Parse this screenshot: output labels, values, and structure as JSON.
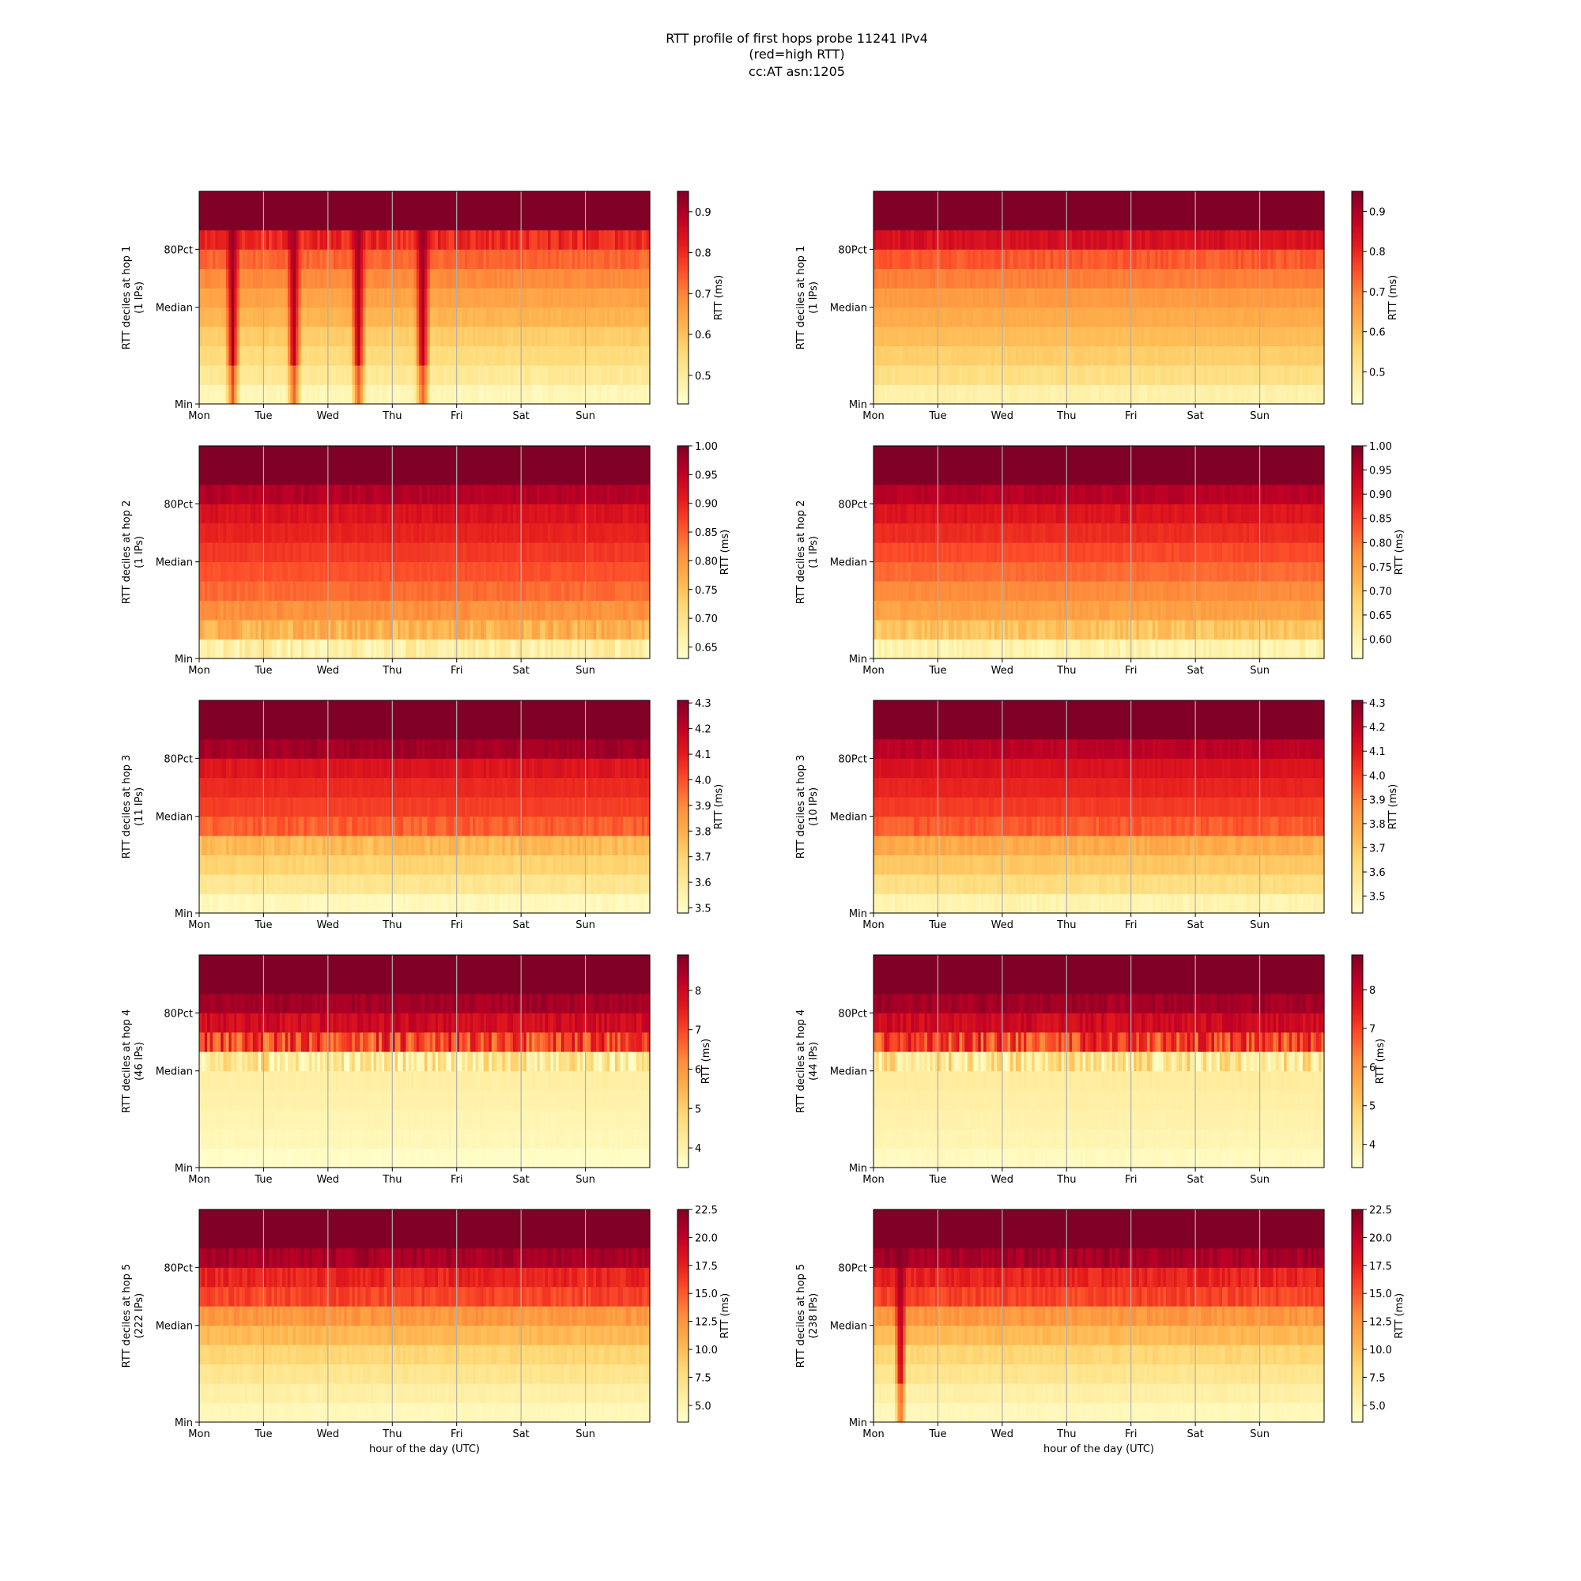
{
  "figure": {
    "title_lines": [
      "RTT profile of first hops probe 11241 IPv4",
      "(red=high RTT)",
      "cc:AT asn:1205"
    ]
  },
  "chart_data": [
    {
      "type": "heatmap",
      "hop": 1,
      "col": 0,
      "ylabel": [
        "RTT deciles at hop 1",
        "(1 IPs)"
      ],
      "xlabel": "",
      "xticks": [
        "Mon",
        "Tue",
        "Wed",
        "Thu",
        "Fri",
        "Sat",
        "Sun"
      ],
      "yticks": [
        "Min",
        "Median",
        "80Pct"
      ],
      "colorbar_label": "RTT (ms)",
      "cbar_ticks": [
        "0.5",
        "0.6",
        "0.7",
        "0.8",
        "0.9"
      ],
      "cbar_range": [
        0.43,
        0.95
      ],
      "deciles": [
        0.46,
        0.51,
        0.55,
        0.58,
        0.62,
        0.65,
        0.69,
        0.73,
        0.8,
        0.95
      ],
      "dips": [
        [
          0.5,
          0.12
        ],
        [
          1.45,
          0.12
        ],
        [
          2.45,
          0.12
        ],
        [
          3.45,
          0.13
        ]
      ],
      "noise": 0.5,
      "grid": true
    },
    {
      "type": "heatmap",
      "hop": 1,
      "col": 1,
      "ylabel": [
        "RTT deciles at hop 1",
        "(1 IPs)"
      ],
      "xlabel": "",
      "xticks": [
        "Mon",
        "Tue",
        "Wed",
        "Thu",
        "Fri",
        "Sat",
        "Sun"
      ],
      "yticks": [
        "Min",
        "Median",
        "80Pct"
      ],
      "colorbar_label": "RTT (ms)",
      "cbar_ticks": [
        "0.5",
        "0.6",
        "0.7",
        "0.8",
        "0.9"
      ],
      "cbar_range": [
        0.42,
        0.95
      ],
      "deciles": [
        0.47,
        0.53,
        0.57,
        0.6,
        0.63,
        0.66,
        0.7,
        0.74,
        0.84,
        0.95
      ],
      "dips": [],
      "noise": 0.4,
      "grid": true
    },
    {
      "type": "heatmap",
      "hop": 2,
      "col": 0,
      "ylabel": [
        "RTT deciles at hop 2",
        "(1 IPs)"
      ],
      "xlabel": "",
      "xticks": [
        "Mon",
        "Tue",
        "Wed",
        "Thu",
        "Fri",
        "Sat",
        "Sun"
      ],
      "yticks": [
        "Min",
        "Median",
        "80Pct"
      ],
      "colorbar_label": "RTT (ms)",
      "cbar_ticks": [
        "0.65",
        "0.70",
        "0.75",
        "0.80",
        "0.85",
        "0.90",
        "0.95",
        "1.00"
      ],
      "cbar_range": [
        0.63,
        1.0
      ],
      "deciles": [
        0.67,
        0.77,
        0.81,
        0.84,
        0.86,
        0.88,
        0.9,
        0.92,
        0.96,
        1.0
      ],
      "dips": [],
      "noise": 0.6,
      "grid": true
    },
    {
      "type": "heatmap",
      "hop": 2,
      "col": 1,
      "ylabel": [
        "RTT deciles at hop 2",
        "(1 IPs)"
      ],
      "xlabel": "",
      "xticks": [
        "Mon",
        "Tue",
        "Wed",
        "Thu",
        "Fri",
        "Sat",
        "Sun"
      ],
      "yticks": [
        "Min",
        "Median",
        "80Pct"
      ],
      "colorbar_label": "RTT (ms)",
      "cbar_ticks": [
        "0.60",
        "0.65",
        "0.70",
        "0.75",
        "0.80",
        "0.85",
        "0.90",
        "0.95",
        "1.00"
      ],
      "cbar_range": [
        0.56,
        1.0
      ],
      "deciles": [
        0.6,
        0.7,
        0.75,
        0.78,
        0.81,
        0.84,
        0.87,
        0.9,
        0.95,
        1.0
      ],
      "dips": [],
      "noise": 0.5,
      "grid": true
    },
    {
      "type": "heatmap",
      "hop": 3,
      "col": 0,
      "ylabel": [
        "RTT deciles at hop 3",
        "(11 IPs)"
      ],
      "xlabel": "",
      "xticks": [
        "Mon",
        "Tue",
        "Wed",
        "Thu",
        "Fri",
        "Sat",
        "Sun"
      ],
      "yticks": [
        "Min",
        "Median",
        "80Pct"
      ],
      "colorbar_label": "RTT (ms)",
      "cbar_ticks": [
        "3.5",
        "3.6",
        "3.7",
        "3.8",
        "3.9",
        "4.0",
        "4.1",
        "4.2",
        "4.3"
      ],
      "cbar_range": [
        3.48,
        4.31
      ],
      "deciles": [
        3.52,
        3.62,
        3.7,
        3.77,
        3.97,
        4.03,
        4.07,
        4.12,
        4.25,
        4.31
      ],
      "dips": [],
      "noise": 0.4,
      "grid": true
    },
    {
      "type": "heatmap",
      "hop": 3,
      "col": 1,
      "ylabel": [
        "RTT deciles at hop 3",
        "(10 IPs)"
      ],
      "xlabel": "",
      "xticks": [
        "Mon",
        "Tue",
        "Wed",
        "Thu",
        "Fri",
        "Sat",
        "Sun"
      ],
      "yticks": [
        "Min",
        "Median",
        "80Pct"
      ],
      "colorbar_label": "RTT (ms)",
      "cbar_ticks": [
        "3.5",
        "3.6",
        "3.7",
        "3.8",
        "3.9",
        "4.0",
        "4.1",
        "4.2",
        "4.3"
      ],
      "cbar_range": [
        3.43,
        4.31
      ],
      "deciles": [
        3.5,
        3.62,
        3.7,
        3.78,
        3.96,
        4.02,
        4.07,
        4.12,
        4.2,
        4.31
      ],
      "dips": [],
      "noise": 0.4,
      "grid": true
    },
    {
      "type": "heatmap",
      "hop": 4,
      "col": 0,
      "ylabel": [
        "RTT deciles at hop 4",
        "(46 IPs)"
      ],
      "xlabel": "",
      "xticks": [
        "Mon",
        "Tue",
        "Wed",
        "Thu",
        "Fri",
        "Sat",
        "Sun"
      ],
      "yticks": [
        "Min",
        "Median",
        "80Pct"
      ],
      "colorbar_label": "RTT (ms)",
      "cbar_ticks": [
        "4",
        "5",
        "6",
        "7",
        "8"
      ],
      "cbar_range": [
        3.5,
        8.9
      ],
      "deciles": [
        3.6,
        3.8,
        3.9,
        4.0,
        4.1,
        4.3,
        7.0,
        7.9,
        8.5,
        8.9
      ],
      "dips": [],
      "noise": 0.7,
      "grid": true
    },
    {
      "type": "heatmap",
      "hop": 4,
      "col": 1,
      "ylabel": [
        "RTT deciles at hop 4",
        "(44 IPs)"
      ],
      "xlabel": "",
      "xticks": [
        "Mon",
        "Tue",
        "Wed",
        "Thu",
        "Fri",
        "Sat",
        "Sun"
      ],
      "yticks": [
        "Min",
        "Median",
        "80Pct"
      ],
      "colorbar_label": "RTT (ms)",
      "cbar_ticks": [
        "4",
        "5",
        "6",
        "7",
        "8"
      ],
      "cbar_range": [
        3.4,
        8.9
      ],
      "deciles": [
        3.6,
        3.8,
        3.9,
        4.0,
        4.1,
        4.3,
        7.0,
        7.9,
        8.5,
        8.9
      ],
      "dips": [],
      "noise": 0.7,
      "grid": true
    },
    {
      "type": "heatmap",
      "hop": 5,
      "col": 0,
      "ylabel": [
        "RTT deciles at hop 5",
        "(222 IPs)"
      ],
      "xlabel": "hour of the day (UTC)",
      "xticks": [
        "Mon",
        "Tue",
        "Wed",
        "Thu",
        "Fri",
        "Sat",
        "Sun"
      ],
      "yticks": [
        "Min",
        "Median",
        "80Pct"
      ],
      "colorbar_label": "RTT (ms)",
      "cbar_ticks": [
        "5.0",
        "7.5",
        "10.0",
        "12.5",
        "15.0",
        "17.5",
        "20.0",
        "22.5"
      ],
      "cbar_range": [
        3.5,
        22.5
      ],
      "deciles": [
        4.5,
        5.5,
        6.8,
        8.3,
        10.2,
        12.3,
        15.8,
        17.3,
        21.0,
        22.5
      ],
      "dips": [],
      "noise": 0.5,
      "grid": true
    },
    {
      "type": "heatmap",
      "hop": 5,
      "col": 1,
      "ylabel": [
        "RTT deciles at hop 5",
        "(238 IPs)"
      ],
      "xlabel": "hour of the day (UTC)",
      "xticks": [
        "Mon",
        "Tue",
        "Wed",
        "Thu",
        "Fri",
        "Sat",
        "Sun"
      ],
      "yticks": [
        "Min",
        "Median",
        "80Pct"
      ],
      "colorbar_label": "RTT (ms)",
      "cbar_ticks": [
        "5.0",
        "7.5",
        "10.0",
        "12.5",
        "15.0",
        "17.5",
        "20.0",
        "22.5"
      ],
      "cbar_range": [
        3.5,
        22.5
      ],
      "deciles": [
        4.5,
        5.5,
        6.8,
        8.3,
        10.2,
        12.3,
        15.8,
        17.3,
        21.0,
        22.5
      ],
      "dips": [
        [
          0.4,
          0.1
        ]
      ],
      "noise": 0.5,
      "grid": true
    }
  ]
}
